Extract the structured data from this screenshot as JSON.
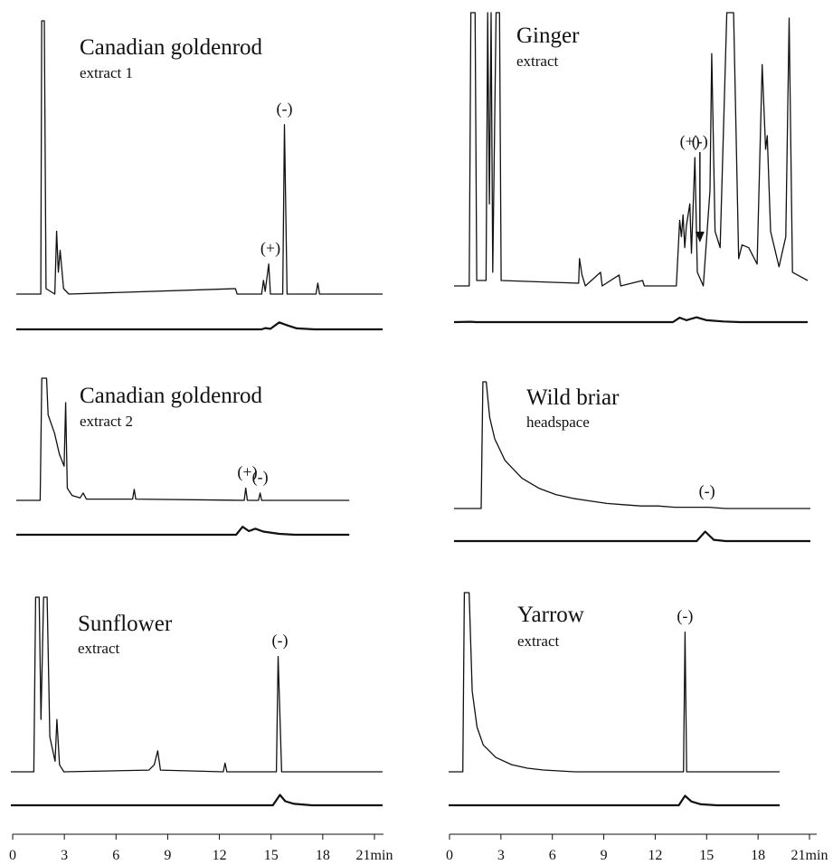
{
  "chart_data": [
    {
      "type": "line",
      "title": "Canadian goldenrod",
      "subtitle": "extract 1",
      "x_unit": "min",
      "xlim": [
        0,
        21
      ],
      "series": [
        {
          "role": "upper",
          "points": [
            [
              0,
              0
            ],
            [
              1.4,
              0
            ],
            [
              1.45,
              100
            ],
            [
              1.6,
              100
            ],
            [
              1.7,
              2
            ],
            [
              2.2,
              0
            ],
            [
              2.3,
              23
            ],
            [
              2.4,
              8
            ],
            [
              2.5,
              16
            ],
            [
              2.7,
              2
            ],
            [
              3,
              0
            ],
            [
              12.5,
              2
            ],
            [
              12.6,
              0
            ],
            [
              14,
              0
            ],
            [
              14.1,
              5
            ],
            [
              14.2,
              1
            ],
            [
              14.4,
              11
            ],
            [
              14.5,
              0
            ],
            [
              15.2,
              0
            ],
            [
              15.3,
              62
            ],
            [
              15.45,
              0
            ],
            [
              17.1,
              0
            ],
            [
              17.2,
              4
            ],
            [
              17.3,
              0
            ],
            [
              20.9,
              0
            ]
          ]
        },
        {
          "role": "lower",
          "points": [
            [
              0,
              0
            ],
            [
              14,
              0
            ],
            [
              14.2,
              10
            ],
            [
              14.5,
              4
            ],
            [
              15,
              55
            ],
            [
              15.5,
              30
            ],
            [
              16,
              8
            ],
            [
              17,
              0
            ],
            [
              20.9,
              0
            ]
          ]
        }
      ],
      "annotations": [
        {
          "text": "(+)",
          "x": 14.5
        },
        {
          "text": "(-)",
          "x": 15.3
        }
      ]
    },
    {
      "type": "line",
      "title": "Ginger",
      "subtitle": "extract",
      "x_unit": "min",
      "xlim": [
        0,
        21
      ],
      "series": [
        {
          "role": "upper",
          "points": [
            [
              0,
              0
            ],
            [
              0.9,
              0
            ],
            [
              1,
              100
            ],
            [
              1.25,
              100
            ],
            [
              1.35,
              2
            ],
            [
              1.9,
              2
            ],
            [
              2,
              100
            ],
            [
              2.1,
              30
            ],
            [
              2.2,
              100
            ],
            [
              2.3,
              5
            ],
            [
              2.5,
              100
            ],
            [
              2.7,
              100
            ],
            [
              2.8,
              2
            ],
            [
              7.4,
              1
            ],
            [
              7.45,
              10
            ],
            [
              7.6,
              4
            ],
            [
              7.8,
              0
            ],
            [
              8.7,
              5
            ],
            [
              8.8,
              0
            ],
            [
              9.8,
              4
            ],
            [
              9.9,
              0
            ],
            [
              11.2,
              2
            ],
            [
              11.3,
              0
            ],
            [
              13.2,
              0
            ],
            [
              13.4,
              24
            ],
            [
              13.5,
              18
            ],
            [
              13.6,
              26
            ],
            [
              13.7,
              14
            ],
            [
              13.8,
              22
            ],
            [
              14,
              30
            ],
            [
              14.1,
              12
            ],
            [
              14.3,
              47
            ],
            [
              14.45,
              5
            ],
            [
              14.8,
              0
            ],
            [
              15.2,
              35
            ],
            [
              15.3,
              85
            ],
            [
              15.5,
              20
            ],
            [
              15.8,
              14
            ],
            [
              16.2,
              100
            ],
            [
              16.6,
              100
            ],
            [
              16.9,
              10
            ],
            [
              17.1,
              15
            ],
            [
              17.5,
              14
            ],
            [
              18,
              8
            ],
            [
              18.3,
              81
            ],
            [
              18.5,
              50
            ],
            [
              18.6,
              55
            ],
            [
              18.8,
              20
            ],
            [
              19.3,
              7
            ],
            [
              19.7,
              18
            ],
            [
              19.9,
              98
            ],
            [
              20.1,
              5
            ],
            [
              21,
              2
            ]
          ]
        },
        {
          "role": "lower",
          "points": [
            [
              0,
              0
            ],
            [
              1,
              3
            ],
            [
              1.3,
              0
            ],
            [
              13,
              0
            ],
            [
              13.4,
              35
            ],
            [
              13.8,
              15
            ],
            [
              14.4,
              38
            ],
            [
              15,
              15
            ],
            [
              16,
              5
            ],
            [
              17,
              0
            ],
            [
              21,
              0
            ]
          ]
        }
      ],
      "annotations": [
        {
          "text": "(+)",
          "x": 14
        },
        {
          "text": "(-)",
          "x": 14.6
        }
      ]
    },
    {
      "type": "line",
      "title": "Canadian goldenrod",
      "subtitle": "extract 2",
      "x_unit": "min",
      "xlim": [
        0,
        21
      ],
      "series": [
        {
          "role": "upper",
          "points": [
            [
              0,
              0
            ],
            [
              1.5,
              0
            ],
            [
              1.6,
              100
            ],
            [
              1.9,
              100
            ],
            [
              2,
              70
            ],
            [
              2.4,
              55
            ],
            [
              2.7,
              38
            ],
            [
              3,
              28
            ],
            [
              3.1,
              80
            ],
            [
              3.2,
              10
            ],
            [
              3.5,
              4
            ],
            [
              4,
              2
            ],
            [
              4.2,
              6
            ],
            [
              4.4,
              1
            ],
            [
              7.3,
              1
            ],
            [
              7.4,
              9
            ],
            [
              7.5,
              1
            ],
            [
              14.3,
              0
            ],
            [
              14.4,
              10
            ],
            [
              14.5,
              0
            ],
            [
              15.2,
              0
            ],
            [
              15.3,
              6
            ],
            [
              15.4,
              0
            ],
            [
              20.9,
              0
            ]
          ]
        },
        {
          "role": "lower",
          "points": [
            [
              0,
              0
            ],
            [
              13.8,
              0
            ],
            [
              14.2,
              55
            ],
            [
              14.6,
              25
            ],
            [
              15,
              42
            ],
            [
              15.5,
              22
            ],
            [
              16.5,
              6
            ],
            [
              17.5,
              0
            ],
            [
              20.9,
              0
            ]
          ]
        }
      ],
      "annotations": [
        {
          "text": "(+)",
          "x": 14.5
        },
        {
          "text": "(-)",
          "x": 15.3
        }
      ]
    },
    {
      "type": "line",
      "title": "Wild briar",
      "subtitle": "headspace",
      "x_unit": "min",
      "xlim": [
        0,
        21
      ],
      "series": [
        {
          "role": "upper",
          "points": [
            [
              0,
              0
            ],
            [
              1.6,
              0
            ],
            [
              1.7,
              100
            ],
            [
              1.9,
              100
            ],
            [
              2.1,
              72
            ],
            [
              2.4,
              55
            ],
            [
              3,
              38
            ],
            [
              4,
              24
            ],
            [
              5,
              16
            ],
            [
              6,
              11
            ],
            [
              7,
              8
            ],
            [
              8,
              6
            ],
            [
              9,
              4
            ],
            [
              10,
              3
            ],
            [
              11,
              2
            ],
            [
              12,
              2
            ],
            [
              13,
              1
            ],
            [
              14,
              1
            ],
            [
              15,
              1
            ],
            [
              16,
              0
            ],
            [
              21,
              0
            ]
          ]
        },
        {
          "role": "lower",
          "points": [
            [
              0,
              0
            ],
            [
              14.3,
              0
            ],
            [
              14.8,
              75
            ],
            [
              15.3,
              10
            ],
            [
              16,
              0
            ],
            [
              21,
              0
            ]
          ]
        }
      ],
      "annotations": [
        {
          "text": "(-)",
          "x": 14.9
        }
      ]
    },
    {
      "type": "line",
      "title": "Sunflower",
      "subtitle": "extract",
      "x_unit": "min",
      "xlim": [
        0,
        21
      ],
      "series": [
        {
          "role": "upper",
          "points": [
            [
              0,
              0
            ],
            [
              1.3,
              0
            ],
            [
              1.4,
              100
            ],
            [
              1.6,
              100
            ],
            [
              1.7,
              30
            ],
            [
              1.85,
              100
            ],
            [
              2.05,
              100
            ],
            [
              2.2,
              20
            ],
            [
              2.5,
              6
            ],
            [
              2.6,
              30
            ],
            [
              2.75,
              4
            ],
            [
              3,
              0
            ],
            [
              7.8,
              1
            ],
            [
              8.1,
              4
            ],
            [
              8.3,
              12
            ],
            [
              8.45,
              1
            ],
            [
              12,
              0
            ],
            [
              12.1,
              5
            ],
            [
              12.2,
              0
            ],
            [
              15,
              0
            ],
            [
              15.1,
              66
            ],
            [
              15.3,
              0
            ],
            [
              21,
              0
            ]
          ]
        },
        {
          "role": "lower",
          "points": [
            [
              0,
              0
            ],
            [
              14.8,
              0
            ],
            [
              15.2,
              72
            ],
            [
              15.5,
              28
            ],
            [
              16,
              10
            ],
            [
              17,
              0
            ],
            [
              21,
              0
            ]
          ]
        }
      ],
      "annotations": [
        {
          "text": "(-)",
          "x": 15.2
        }
      ]
    },
    {
      "type": "line",
      "title": "Yarrow",
      "subtitle": "extract",
      "x_unit": "min",
      "xlim": [
        0,
        21
      ],
      "series": [
        {
          "role": "upper",
          "points": [
            [
              0,
              0
            ],
            [
              0.9,
              0
            ],
            [
              1,
              100
            ],
            [
              1.3,
              100
            ],
            [
              1.5,
              45
            ],
            [
              1.8,
              25
            ],
            [
              2.2,
              15
            ],
            [
              3,
              8
            ],
            [
              4,
              4
            ],
            [
              5,
              2
            ],
            [
              6,
              1
            ],
            [
              8,
              0
            ],
            [
              14.9,
              0
            ],
            [
              15,
              78
            ],
            [
              15.1,
              0
            ],
            [
              21,
              0
            ]
          ]
        },
        {
          "role": "lower",
          "points": [
            [
              0,
              0
            ],
            [
              14.6,
              0
            ],
            [
              15,
              75
            ],
            [
              15.4,
              30
            ],
            [
              16,
              8
            ],
            [
              17,
              0
            ],
            [
              21,
              0
            ]
          ]
        }
      ],
      "annotations": [
        {
          "text": "(-)",
          "x": 15
        }
      ]
    }
  ],
  "x_axes": [
    {
      "ticks": [
        "0",
        "3",
        "6",
        "9",
        "12",
        "15",
        "18"
      ],
      "end_label": "21min"
    },
    {
      "ticks": [
        "0",
        "3",
        "6",
        "9",
        "12",
        "15",
        "18"
      ],
      "end_label": "21min"
    }
  ]
}
